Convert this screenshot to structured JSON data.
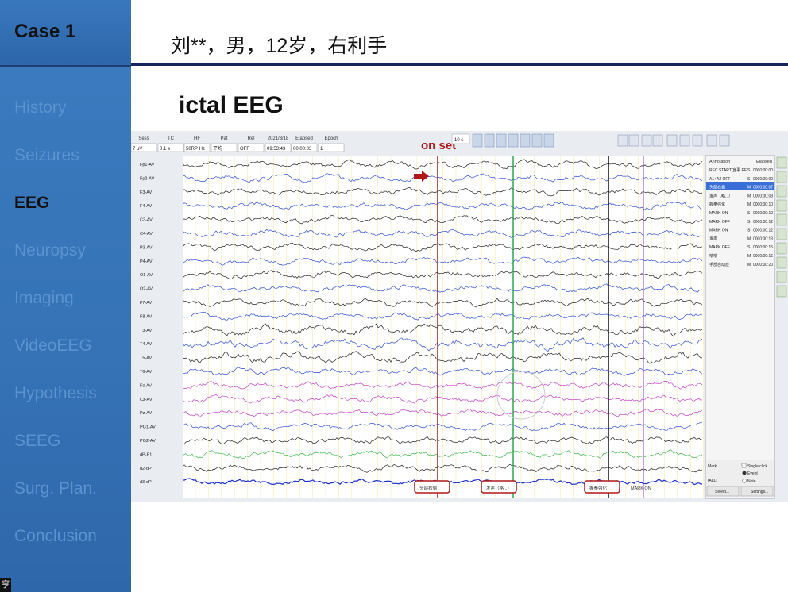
{
  "sidebar": {
    "case": "Case 1",
    "items": [
      "History",
      "Seizures",
      "EEG",
      "Neuropsy",
      "Imaging",
      "VideoEEG",
      "Hypothesis",
      "SEEG",
      "Surg. Plan.",
      "Conclusion"
    ],
    "active": 2
  },
  "header": {
    "title": "刘**，男，12岁，右利手"
  },
  "slide": {
    "heading": "ictal EEG"
  },
  "eeg": {
    "toolbar": {
      "labels": [
        "Sess",
        "TC",
        "HF",
        "Pat",
        "Rel",
        "2021/3/18",
        "Elapsed",
        "Epoch"
      ],
      "values": [
        "7 uV",
        "0.1 s",
        "50RP Hz",
        "平均",
        "OFF",
        "09:53:43",
        "00:00:03",
        "1"
      ],
      "page": "10 s"
    },
    "onset": "on set",
    "channels": [
      "Fp1-AV",
      "Fp2-AV",
      "F3-AV",
      "F4-AV",
      "C3-AV",
      "C4-AV",
      "P3-AV",
      "P4-AV",
      "O1-AV",
      "O2-AV",
      "F7-AV",
      "F8-AV",
      "T3-AV",
      "T4-AV",
      "T5-AV",
      "T6-AV",
      "Fz-AV",
      "Cz-AV",
      "Pz-AV",
      "PG1-AV",
      "PG2-AV",
      "dP-E1",
      "d2-dP",
      "d3-dP"
    ],
    "markers": [
      "头部右偏",
      "发声（略...）",
      "握拳强化",
      "MARK ON"
    ],
    "annotation_header": [
      "Annotation",
      "Elapsed"
    ],
    "annotations": [
      [
        "REC START 宣事 EE",
        "S",
        "0000:00:00"
      ],
      [
        "A1+A2 OFF",
        "S",
        "0000:00:00"
      ],
      [
        "头部右偏",
        "M",
        "0000:00:07"
      ],
      [
        "发声（略...）",
        "M",
        "0000:00:08"
      ],
      [
        "握拳强化",
        "M",
        "0000:00:10"
      ],
      [
        "MARK ON",
        "S",
        "0000:00:10"
      ],
      [
        "MARK OFF",
        "S",
        "0000:00:12"
      ],
      [
        "MARK ON",
        "S",
        "0000:00:12"
      ],
      [
        "发声",
        "M",
        "0000:00:13"
      ],
      [
        "MARK OFF",
        "S",
        "0000:00:15"
      ],
      [
        "喘喘",
        "M",
        "0000:00:16"
      ],
      [
        "手部自动症",
        "M",
        "0000:00:20"
      ]
    ],
    "panel": {
      "mark": "Mark",
      "single_click": "Single click",
      "all": "[ALL]",
      "event": "Event",
      "note": "Note",
      "select": "Select...",
      "settings": "Settings..."
    }
  },
  "corner": "享"
}
